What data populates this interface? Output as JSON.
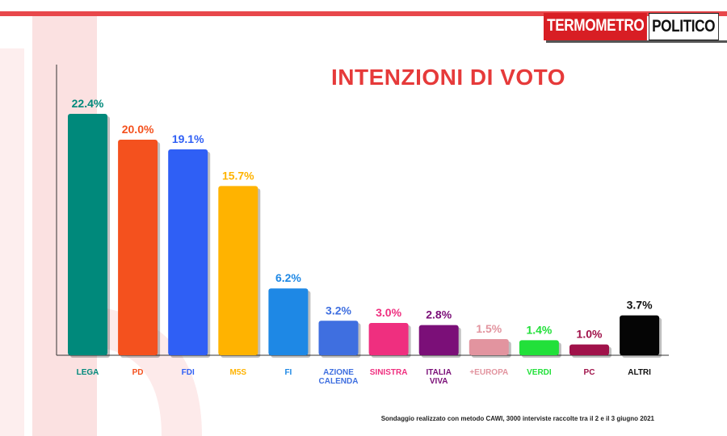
{
  "header": {
    "logo_part1": "TERMOMETRO",
    "logo_part2": "POLITICO"
  },
  "chart_data": {
    "type": "bar",
    "title": "INTENZIONI DI VOTO",
    "categories": [
      "LEGA",
      "PD",
      "FDI",
      "M5S",
      "FI",
      "AZIONE\nCALENDA",
      "SINISTRA",
      "ITALIA\nVIVA",
      "+EUROPA",
      "VERDI",
      "PC",
      "ALTRI"
    ],
    "values": [
      22.4,
      20.0,
      19.1,
      15.7,
      6.2,
      3.2,
      3.0,
      2.8,
      1.5,
      1.4,
      1.0,
      3.7
    ],
    "value_labels": [
      "22.4%",
      "20.0%",
      "19.1%",
      "15.7%",
      "6.2%",
      "3.2%",
      "3.0%",
      "2.8%",
      "1.5%",
      "1.4%",
      "1.0%",
      "3.7%"
    ],
    "colors": [
      "#00897b",
      "#f4511e",
      "#2f5ff5",
      "#ffb300",
      "#1e88e5",
      "#3f6fe0",
      "#ef2f7f",
      "#7b0f78",
      "#e2949f",
      "#22e03a",
      "#a0124a",
      "#050505"
    ],
    "label_colors": [
      "#00897b",
      "#f4511e",
      "#2f5ff5",
      "#ffb300",
      "#1e88e5",
      "#3f6fe0",
      "#ef2f7f",
      "#7b0f78",
      "#e2949f",
      "#22e03a",
      "#a0124a",
      "#111111"
    ],
    "ylim": [
      0,
      22.4
    ],
    "grid": false,
    "legend": false
  },
  "footnote": "Sondaggio realizzato con metodo CAWI, 3000 interviste raccolte tra il 2 e il 3 giugno 2021"
}
